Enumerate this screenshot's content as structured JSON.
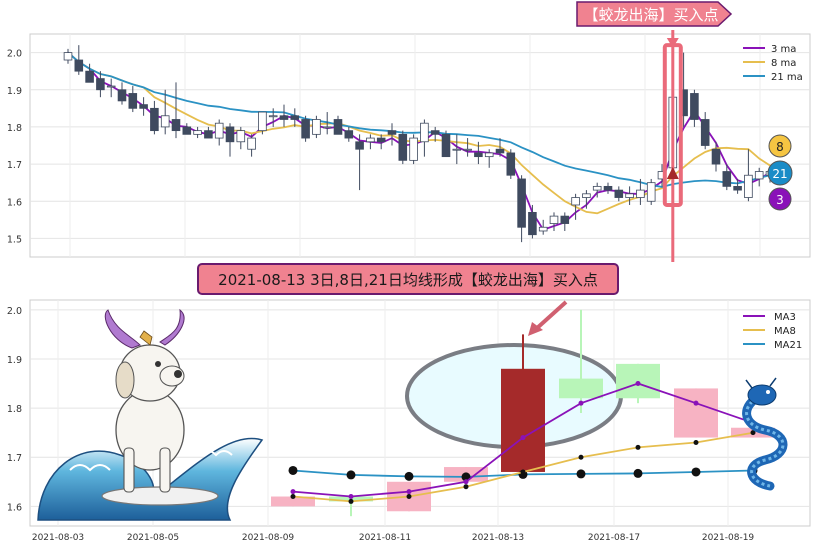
{
  "top_banner": {
    "text": "【蛟龙出海】买入点"
  },
  "mid_banner": {
    "text": "2021-08-13 3日,8日,21日均线形成【蛟龙出海】买入点"
  },
  "colors": {
    "ma3": "#8a12b8",
    "ma8": "#e6be4e",
    "ma21": "#2b92c4",
    "banner_fill": "#f08290",
    "banner_stroke": "#6a1a6e",
    "bear_candle": "#3f4a5f",
    "bull_candle": "#ffffff",
    "signal_box": "#ea6a7a",
    "big_bear": "#a52a2a",
    "bull_box": "#b8f5b8",
    "bear_box": "#f7b3c3",
    "ellipse_fill": "#e8fbff",
    "ellipse_stroke": "#7a7d84"
  },
  "chart_data": [
    {
      "type": "candlestick",
      "ylim": [
        1.45,
        2.05
      ],
      "yticks": [
        "1.5",
        "1.6",
        "1.7",
        "1.8",
        "1.9",
        "2.0"
      ],
      "legend": {
        "position": "top-right",
        "entries": [
          "3 ma",
          "8 ma",
          "21 ma"
        ]
      },
      "badges": [
        "8",
        "21",
        "3"
      ],
      "candles": [
        {
          "o": 1.98,
          "h": 2.01,
          "l": 1.97,
          "c": 2.0
        },
        {
          "o": 1.98,
          "h": 2.02,
          "l": 1.94,
          "c": 1.95
        },
        {
          "o": 1.95,
          "h": 1.97,
          "l": 1.92,
          "c": 1.92
        },
        {
          "o": 1.93,
          "h": 1.95,
          "l": 1.88,
          "c": 1.9
        },
        {
          "o": 1.91,
          "h": 1.93,
          "l": 1.88,
          "c": 1.91
        },
        {
          "o": 1.9,
          "h": 1.92,
          "l": 1.86,
          "c": 1.87
        },
        {
          "o": 1.89,
          "h": 1.91,
          "l": 1.84,
          "c": 1.85
        },
        {
          "o": 1.86,
          "h": 1.88,
          "l": 1.83,
          "c": 1.85
        },
        {
          "o": 1.85,
          "h": 1.87,
          "l": 1.78,
          "c": 1.79
        },
        {
          "o": 1.8,
          "h": 1.9,
          "l": 1.78,
          "c": 1.83
        },
        {
          "o": 1.82,
          "h": 1.92,
          "l": 1.77,
          "c": 1.79
        },
        {
          "o": 1.8,
          "h": 1.81,
          "l": 1.78,
          "c": 1.78
        },
        {
          "o": 1.78,
          "h": 1.8,
          "l": 1.77,
          "c": 1.79
        },
        {
          "o": 1.79,
          "h": 1.8,
          "l": 1.77,
          "c": 1.77
        },
        {
          "o": 1.77,
          "h": 1.82,
          "l": 1.75,
          "c": 1.81
        },
        {
          "o": 1.8,
          "h": 1.81,
          "l": 1.72,
          "c": 1.76
        },
        {
          "o": 1.76,
          "h": 1.8,
          "l": 1.74,
          "c": 1.79
        },
        {
          "o": 1.74,
          "h": 1.78,
          "l": 1.72,
          "c": 1.77
        },
        {
          "o": 1.79,
          "h": 1.84,
          "l": 1.78,
          "c": 1.84
        },
        {
          "o": 1.83,
          "h": 1.85,
          "l": 1.8,
          "c": 1.83
        },
        {
          "o": 1.83,
          "h": 1.86,
          "l": 1.8,
          "c": 1.82
        },
        {
          "o": 1.83,
          "h": 1.85,
          "l": 1.8,
          "c": 1.82
        },
        {
          "o": 1.82,
          "h": 1.83,
          "l": 1.76,
          "c": 1.77
        },
        {
          "o": 1.78,
          "h": 1.83,
          "l": 1.77,
          "c": 1.82
        },
        {
          "o": 1.8,
          "h": 1.84,
          "l": 1.78,
          "c": 1.8
        },
        {
          "o": 1.82,
          "h": 1.83,
          "l": 1.78,
          "c": 1.78
        },
        {
          "o": 1.79,
          "h": 1.8,
          "l": 1.76,
          "c": 1.77
        },
        {
          "o": 1.76,
          "h": 1.78,
          "l": 1.63,
          "c": 1.74
        },
        {
          "o": 1.76,
          "h": 1.78,
          "l": 1.74,
          "c": 1.77
        },
        {
          "o": 1.77,
          "h": 1.78,
          "l": 1.74,
          "c": 1.76
        },
        {
          "o": 1.79,
          "h": 1.81,
          "l": 1.75,
          "c": 1.78
        },
        {
          "o": 1.78,
          "h": 1.79,
          "l": 1.7,
          "c": 1.71
        },
        {
          "o": 1.71,
          "h": 1.78,
          "l": 1.7,
          "c": 1.77
        },
        {
          "o": 1.76,
          "h": 1.82,
          "l": 1.72,
          "c": 1.81
        },
        {
          "o": 1.79,
          "h": 1.8,
          "l": 1.76,
          "c": 1.78
        },
        {
          "o": 1.78,
          "h": 1.79,
          "l": 1.72,
          "c": 1.72
        },
        {
          "o": 1.74,
          "h": 1.78,
          "l": 1.7,
          "c": 1.74
        },
        {
          "o": 1.74,
          "h": 1.77,
          "l": 1.72,
          "c": 1.74
        },
        {
          "o": 1.73,
          "h": 1.76,
          "l": 1.7,
          "c": 1.72
        },
        {
          "o": 1.72,
          "h": 1.74,
          "l": 1.69,
          "c": 1.73
        },
        {
          "o": 1.74,
          "h": 1.77,
          "l": 1.72,
          "c": 1.73
        },
        {
          "o": 1.73,
          "h": 1.74,
          "l": 1.66,
          "c": 1.67
        },
        {
          "o": 1.66,
          "h": 1.67,
          "l": 1.49,
          "c": 1.53
        },
        {
          "o": 1.57,
          "h": 1.59,
          "l": 1.5,
          "c": 1.51
        },
        {
          "o": 1.52,
          "h": 1.55,
          "l": 1.51,
          "c": 1.53
        },
        {
          "o": 1.54,
          "h": 1.57,
          "l": 1.52,
          "c": 1.56
        },
        {
          "o": 1.56,
          "h": 1.57,
          "l": 1.52,
          "c": 1.54
        },
        {
          "o": 1.59,
          "h": 1.62,
          "l": 1.55,
          "c": 1.61
        },
        {
          "o": 1.61,
          "h": 1.63,
          "l": 1.58,
          "c": 1.62
        },
        {
          "o": 1.63,
          "h": 1.65,
          "l": 1.61,
          "c": 1.64
        },
        {
          "o": 1.64,
          "h": 1.65,
          "l": 1.62,
          "c": 1.63
        },
        {
          "o": 1.63,
          "h": 1.64,
          "l": 1.6,
          "c": 1.61
        },
        {
          "o": 1.61,
          "h": 1.64,
          "l": 1.59,
          "c": 1.62
        },
        {
          "o": 1.61,
          "h": 1.66,
          "l": 1.59,
          "c": 1.63
        },
        {
          "o": 1.6,
          "h": 1.66,
          "l": 1.59,
          "c": 1.65
        },
        {
          "o": 1.66,
          "h": 1.7,
          "l": 1.64,
          "c": 1.68
        },
        {
          "o": 1.69,
          "h": 1.99,
          "l": 1.66,
          "c": 1.88
        },
        {
          "o": 1.9,
          "h": 2.0,
          "l": 1.8,
          "c": 1.83
        },
        {
          "o": 1.89,
          "h": 1.9,
          "l": 1.8,
          "c": 1.82
        },
        {
          "o": 1.82,
          "h": 1.84,
          "l": 1.74,
          "c": 1.75
        },
        {
          "o": 1.74,
          "h": 1.76,
          "l": 1.68,
          "c": 1.7
        },
        {
          "o": 1.68,
          "h": 1.7,
          "l": 1.63,
          "c": 1.64
        },
        {
          "o": 1.64,
          "h": 1.66,
          "l": 1.62,
          "c": 1.63
        },
        {
          "o": 1.61,
          "h": 1.74,
          "l": 1.6,
          "c": 1.67
        },
        {
          "o": 1.66,
          "h": 1.69,
          "l": 1.64,
          "c": 1.68
        },
        {
          "o": 1.67,
          "h": 1.69,
          "l": 1.65,
          "c": 1.68
        }
      ],
      "signal_index": 56
    },
    {
      "type": "candlestick_ma",
      "x": [
        "2021-08-09",
        "2021-08-10",
        "2021-08-11",
        "2021-08-12",
        "2021-08-13",
        "2021-08-16",
        "2021-08-17",
        "2021-08-18",
        "2021-08-19"
      ],
      "xticks": [
        "2021-08-03",
        "2021-08-05",
        "2021-08-09",
        "2021-08-11",
        "2021-08-13",
        "2021-08-17",
        "2021-08-19"
      ],
      "ylim": [
        1.56,
        2.02
      ],
      "yticks": [
        "1.6",
        "1.7",
        "1.8",
        "1.9",
        "2.0"
      ],
      "legend": {
        "position": "top-right",
        "entries": [
          "MA3",
          "MA8",
          "MA21"
        ]
      },
      "candles": [
        {
          "o": 1.62,
          "h": 1.62,
          "l": 1.6,
          "c": 1.6
        },
        {
          "o": 1.61,
          "h": 1.62,
          "l": 1.58,
          "c": 1.62
        },
        {
          "o": 1.65,
          "h": 1.65,
          "l": 1.59,
          "c": 1.59
        },
        {
          "o": 1.68,
          "h": 1.68,
          "l": 1.65,
          "c": 1.65
        },
        {
          "o": 1.88,
          "h": 1.95,
          "l": 1.67,
          "c": 1.67
        },
        {
          "o": 1.82,
          "h": 2.0,
          "l": 1.79,
          "c": 1.86
        },
        {
          "o": 1.82,
          "h": 1.89,
          "l": 1.81,
          "c": 1.89
        },
        {
          "o": 1.84,
          "h": 1.84,
          "l": 1.74,
          "c": 1.74
        },
        {
          "o": 1.76,
          "h": 1.76,
          "l": 1.74,
          "c": 1.74
        }
      ],
      "ma3": [
        1.63,
        1.62,
        1.63,
        1.65,
        1.74,
        1.81,
        1.85,
        1.81,
        1.77
      ],
      "ma8": [
        1.62,
        1.61,
        1.62,
        1.64,
        1.67,
        1.7,
        1.72,
        1.73,
        1.75
      ],
      "ma21": [
        1.673,
        1.664,
        1.661,
        1.66,
        1.665,
        1.666,
        1.667,
        1.67,
        1.673
      ]
    }
  ]
}
